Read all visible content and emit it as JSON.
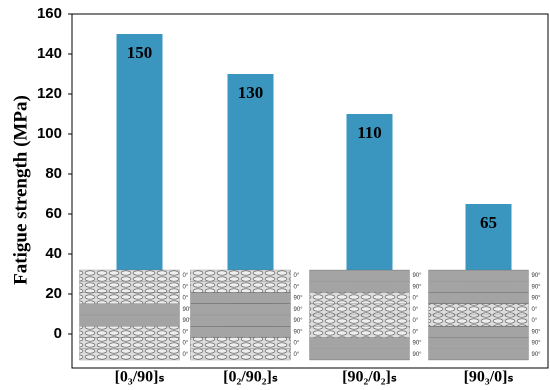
{
  "chart_data": {
    "type": "bar",
    "y_label": "Fatigue strength (MPa)",
    "categories": [
      "[0₃/90]ₛ",
      "[0₂/90₂]ₛ",
      "[90₂/0₂]ₛ",
      "[90₃/0]ₛ"
    ],
    "values": [
      150,
      130,
      110,
      65
    ],
    "color": "#3a95bf",
    "ylim": [
      -17,
      160
    ],
    "yticks": [
      0,
      20,
      40,
      60,
      80,
      100,
      120,
      140,
      160
    ],
    "layups": [
      [
        "0°",
        "0°",
        "0°",
        "90°",
        "90°",
        "0°",
        "0°",
        "0°"
      ],
      [
        "0°",
        "0°",
        "90°",
        "90°",
        "90°",
        "90°",
        "0°",
        "0°"
      ],
      [
        "90°",
        "90°",
        "0°",
        "0°",
        "0°",
        "0°",
        "90°",
        "90°"
      ],
      [
        "90°",
        "90°",
        "90°",
        "0°",
        "0°",
        "90°",
        "90°",
        "90°"
      ]
    ]
  }
}
